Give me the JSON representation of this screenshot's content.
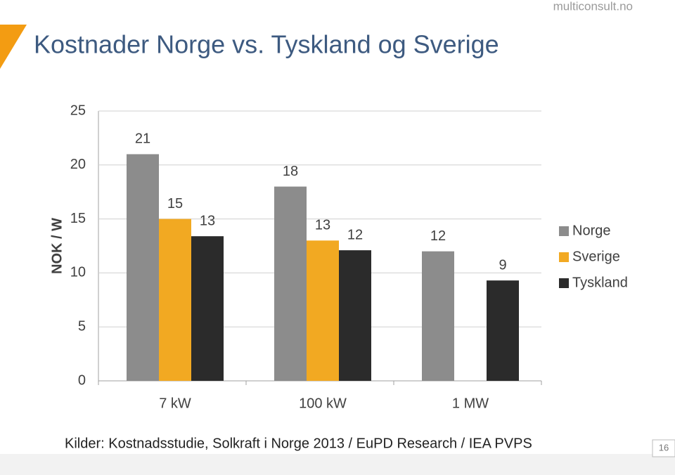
{
  "header": {
    "brand": "multiconsult.no",
    "title": "Kostnader Norge vs. Tyskland og Sverige"
  },
  "chart_data": {
    "type": "bar",
    "y_label": "NOK / W",
    "categories": [
      "7 kW",
      "100 kW",
      "1 MW"
    ],
    "series": [
      {
        "name": "Norge",
        "color": "#8c8c8c",
        "values": [
          21,
          18,
          12
        ]
      },
      {
        "name": "Sverige",
        "color": "#f2a922",
        "values": [
          15,
          13,
          null
        ]
      },
      {
        "name": "Tyskland",
        "color": "#2b2b2b",
        "values": [
          13.4,
          12.1,
          9.3
        ],
        "value_labels": [
          "13",
          "12",
          "9"
        ]
      }
    ],
    "ylim": [
      0,
      25
    ],
    "yticks": [
      0,
      5,
      10,
      15,
      20,
      25
    ],
    "grid": true,
    "legend": "right"
  },
  "footer": {
    "source": "Kilder:  Kostnadsstudie, Solkraft i Norge 2013 /  EuPD Research / IEA PVPS",
    "page": 16
  }
}
